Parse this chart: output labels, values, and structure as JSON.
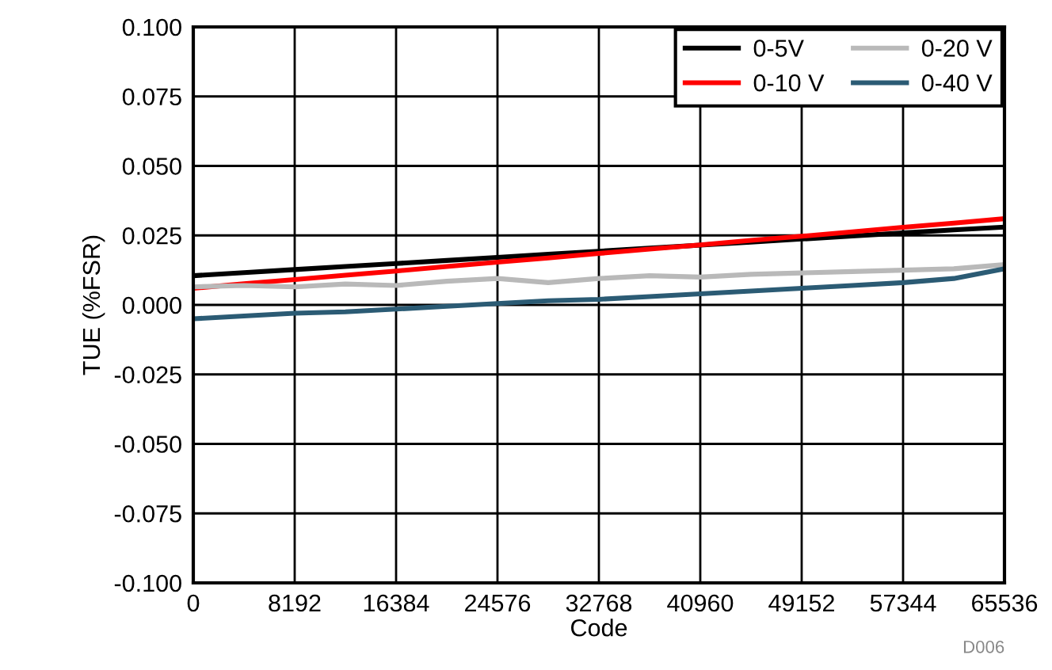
{
  "chart_data": {
    "type": "line",
    "xlabel": "Code",
    "ylabel": "TUE (%FSR)",
    "x": [
      0,
      4096,
      8192,
      12288,
      16384,
      20480,
      24576,
      28672,
      32768,
      36864,
      40960,
      45056,
      49152,
      53248,
      57344,
      61440,
      65536
    ],
    "series": [
      {
        "name": "0-5V",
        "color": "#000000",
        "values": [
          0.0105,
          0.0116,
          0.0127,
          0.0138,
          0.0149,
          0.016,
          0.0171,
          0.0182,
          0.0193,
          0.0204,
          0.0215,
          0.0226,
          0.0237,
          0.0248,
          0.0259,
          0.027,
          0.028
        ]
      },
      {
        "name": "0-10 V",
        "color": "#ff0000",
        "values": [
          0.006,
          0.0076,
          0.0091,
          0.0107,
          0.0122,
          0.0138,
          0.0154,
          0.0169,
          0.0185,
          0.0201,
          0.0216,
          0.0232,
          0.0247,
          0.0263,
          0.0279,
          0.0294,
          0.031
        ]
      },
      {
        "name": "0-20 V",
        "color": "#b9b9b9",
        "values": [
          0.0065,
          0.007,
          0.0065,
          0.0075,
          0.007,
          0.0085,
          0.0095,
          0.008,
          0.0095,
          0.0105,
          0.01,
          0.011,
          0.0115,
          0.012,
          0.0125,
          0.013,
          0.0145
        ]
      },
      {
        "name": "0-40 V",
        "color": "#2b5b74",
        "values": [
          -0.005,
          -0.004,
          -0.003,
          -0.0025,
          -0.0015,
          -0.0005,
          0.0005,
          0.0015,
          0.002,
          0.003,
          0.004,
          0.005,
          0.006,
          0.007,
          0.008,
          0.0095,
          0.013
        ]
      }
    ],
    "xlim": [
      0,
      65536
    ],
    "xticks": [
      0,
      8192,
      16384,
      24576,
      32768,
      40960,
      49152,
      57344,
      65536
    ],
    "ylim": [
      -0.1,
      0.1
    ],
    "yticks": [
      {
        "value": -0.1,
        "label": "-0.100"
      },
      {
        "value": -0.075,
        "label": "-0.075"
      },
      {
        "value": -0.05,
        "label": "-0.050"
      },
      {
        "value": -0.025,
        "label": "-0.025"
      },
      {
        "value": 0,
        "label": "0.000"
      },
      {
        "value": 0.025,
        "label": "0.025"
      },
      {
        "value": 0.05,
        "label": "0.050"
      },
      {
        "value": 0.075,
        "label": "0.075"
      },
      {
        "value": 0.1,
        "label": "0.100"
      }
    ],
    "grid": true,
    "legend": "top right",
    "line_style": "solid",
    "marker": "none",
    "annotations": [
      "D006"
    ]
  }
}
